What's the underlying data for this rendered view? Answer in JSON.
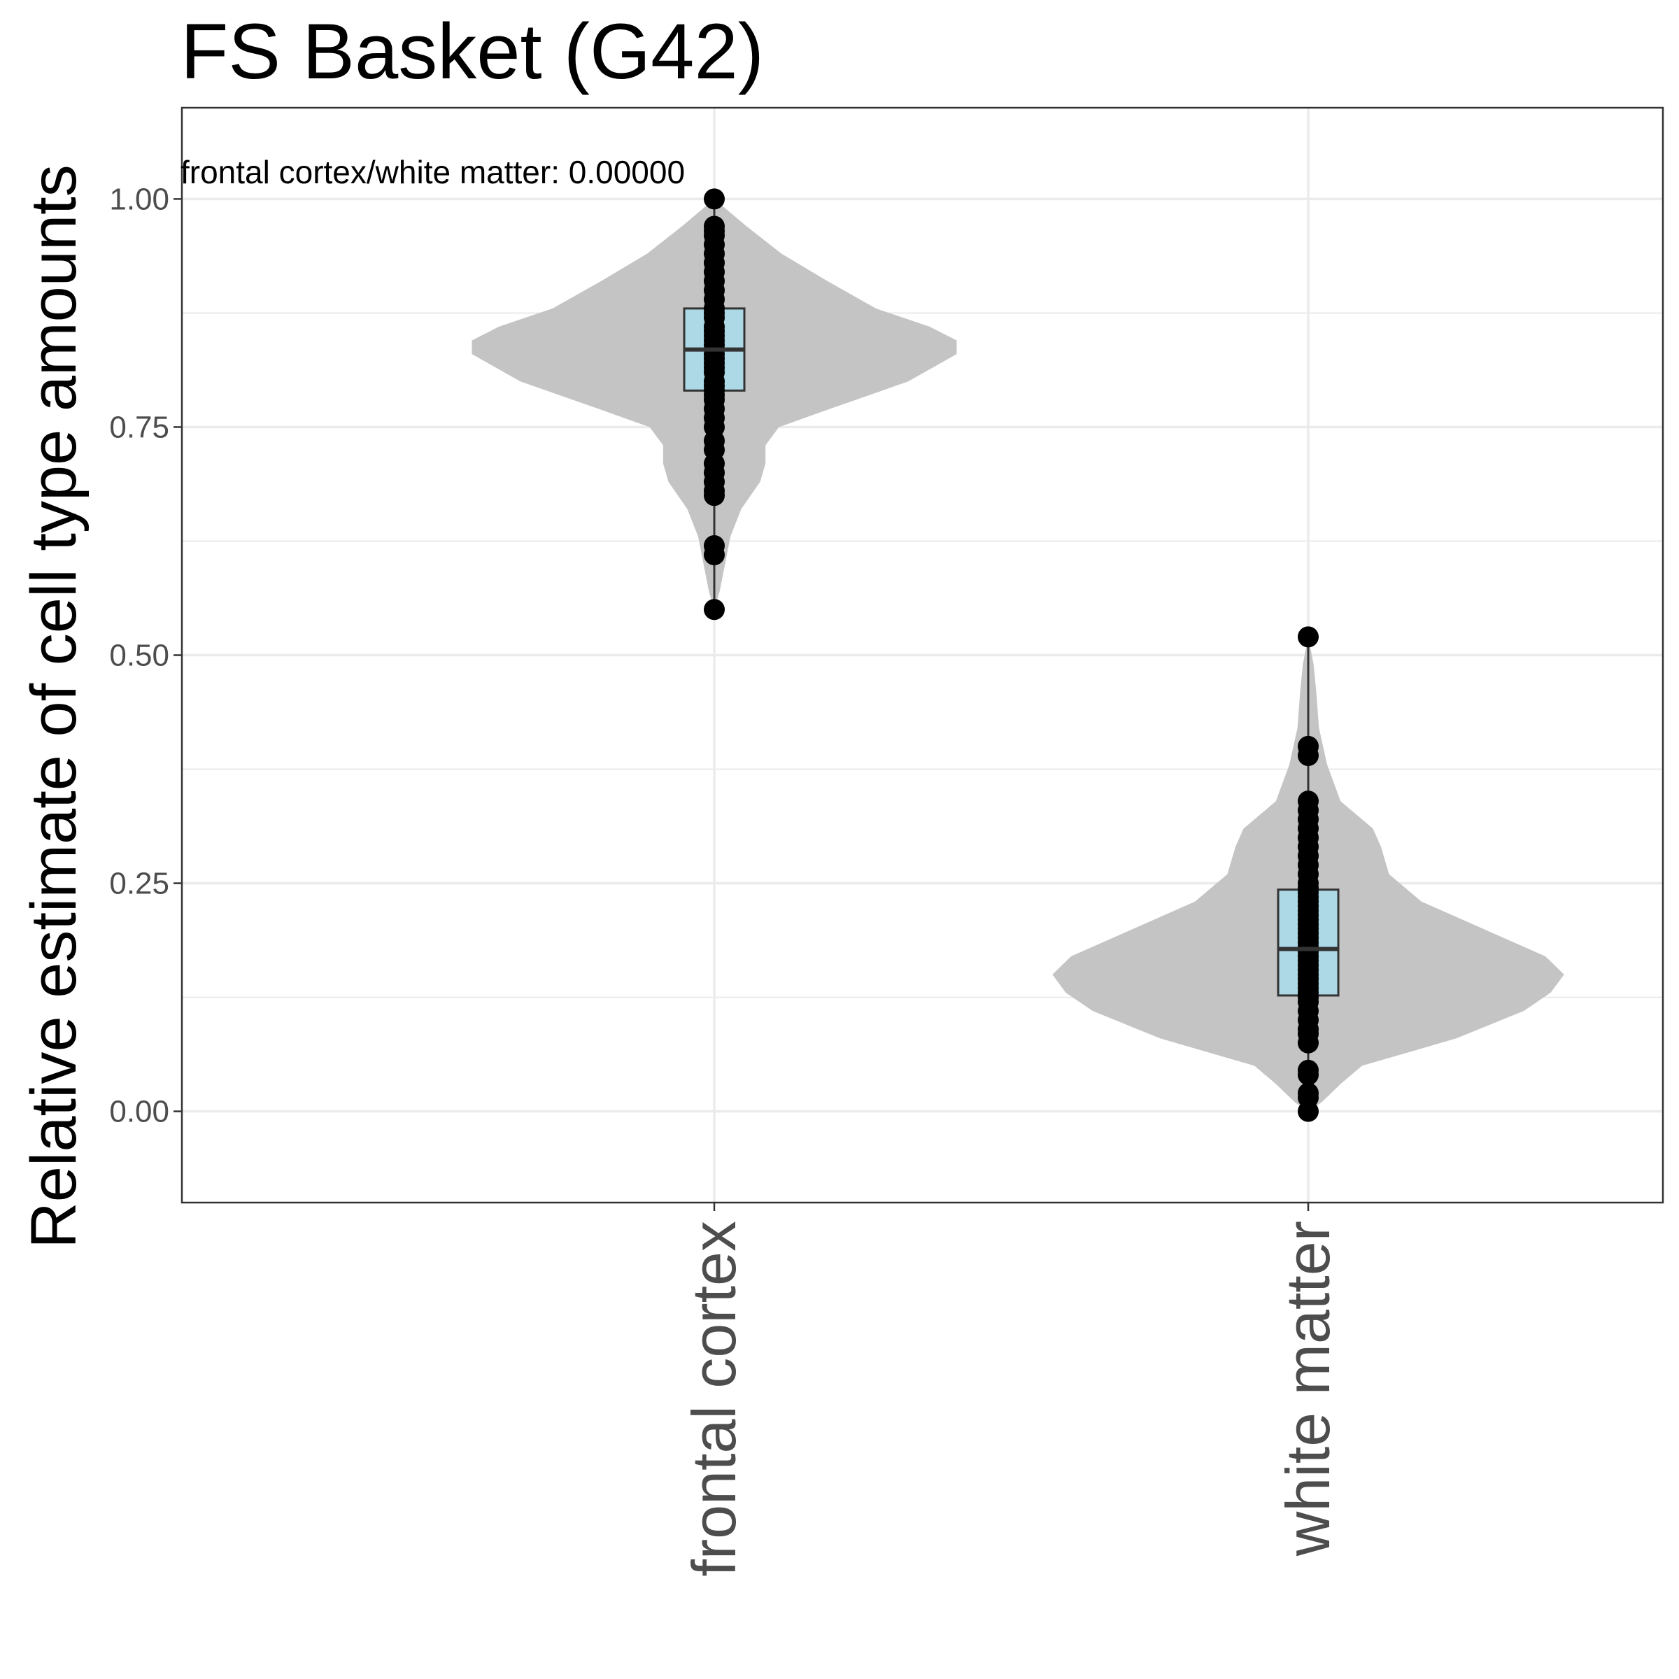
{
  "chart_data": {
    "type": "violin",
    "title": "FS Basket (G42)",
    "xlabel": "",
    "ylabel": "Relative estimate of cell type amounts",
    "categories": [
      "frontal cortex",
      "white matter"
    ],
    "ylim": [
      -0.1,
      1.1
    ],
    "yticks": [
      0.0,
      0.25,
      0.5,
      0.75,
      1.0
    ],
    "ytick_labels": [
      "0.00",
      "0.25",
      "0.50",
      "0.75",
      "1.00"
    ],
    "grid": true,
    "annotation": "frontal cortex/white matter: 0.00000",
    "colors": {
      "violin": "#c4c4c4",
      "box": "#add8e6",
      "points": "#000000",
      "grid": "#ebebeb",
      "panel_border": "#333333"
    },
    "series": [
      {
        "category": "frontal cortex",
        "box": {
          "min": 0.55,
          "q1": 0.79,
          "median": 0.835,
          "q3": 0.88,
          "max": 1.0
        },
        "density": [
          [
            0.55,
            0.0
          ],
          [
            0.57,
            0.02
          ],
          [
            0.6,
            0.04
          ],
          [
            0.63,
            0.06
          ],
          [
            0.66,
            0.1
          ],
          [
            0.69,
            0.17
          ],
          [
            0.71,
            0.19
          ],
          [
            0.73,
            0.19
          ],
          [
            0.75,
            0.24
          ],
          [
            0.77,
            0.43
          ],
          [
            0.8,
            0.72
          ],
          [
            0.83,
            0.9
          ],
          [
            0.845,
            0.9
          ],
          [
            0.86,
            0.8
          ],
          [
            0.88,
            0.6
          ],
          [
            0.91,
            0.42
          ],
          [
            0.94,
            0.25
          ],
          [
            0.97,
            0.12
          ],
          [
            0.99,
            0.04
          ],
          [
            1.0,
            0.0
          ]
        ],
        "points": [
          1.0,
          0.97,
          0.965,
          0.96,
          0.95,
          0.94,
          0.93,
          0.92,
          0.91,
          0.9,
          0.89,
          0.88,
          0.875,
          0.87,
          0.86,
          0.855,
          0.85,
          0.845,
          0.84,
          0.835,
          0.83,
          0.825,
          0.82,
          0.815,
          0.81,
          0.8,
          0.795,
          0.79,
          0.785,
          0.78,
          0.77,
          0.76,
          0.75,
          0.735,
          0.725,
          0.71,
          0.7,
          0.69,
          0.68,
          0.675,
          0.62,
          0.61,
          0.55
        ]
      },
      {
        "category": "white matter",
        "box": {
          "min": 0.0,
          "q1": 0.127,
          "median": 0.178,
          "q3": 0.243,
          "max": 0.52
        },
        "density": [
          [
            0.0,
            0.0
          ],
          [
            0.01,
            0.05
          ],
          [
            0.03,
            0.12
          ],
          [
            0.05,
            0.2
          ],
          [
            0.08,
            0.55
          ],
          [
            0.11,
            0.8
          ],
          [
            0.13,
            0.9
          ],
          [
            0.15,
            0.95
          ],
          [
            0.17,
            0.88
          ],
          [
            0.2,
            0.65
          ],
          [
            0.23,
            0.42
          ],
          [
            0.26,
            0.3
          ],
          [
            0.29,
            0.27
          ],
          [
            0.31,
            0.24
          ],
          [
            0.34,
            0.12
          ],
          [
            0.38,
            0.07
          ],
          [
            0.42,
            0.04
          ],
          [
            0.46,
            0.03
          ],
          [
            0.49,
            0.02
          ],
          [
            0.52,
            0.0
          ]
        ],
        "points": [
          0.52,
          0.4,
          0.39,
          0.34,
          0.33,
          0.32,
          0.31,
          0.3,
          0.29,
          0.28,
          0.27,
          0.26,
          0.25,
          0.245,
          0.24,
          0.235,
          0.23,
          0.225,
          0.22,
          0.215,
          0.21,
          0.205,
          0.2,
          0.195,
          0.19,
          0.185,
          0.18,
          0.175,
          0.17,
          0.165,
          0.16,
          0.155,
          0.15,
          0.145,
          0.14,
          0.135,
          0.13,
          0.125,
          0.12,
          0.11,
          0.1,
          0.09,
          0.085,
          0.075,
          0.045,
          0.04,
          0.02,
          0.015,
          0.0
        ]
      }
    ]
  }
}
